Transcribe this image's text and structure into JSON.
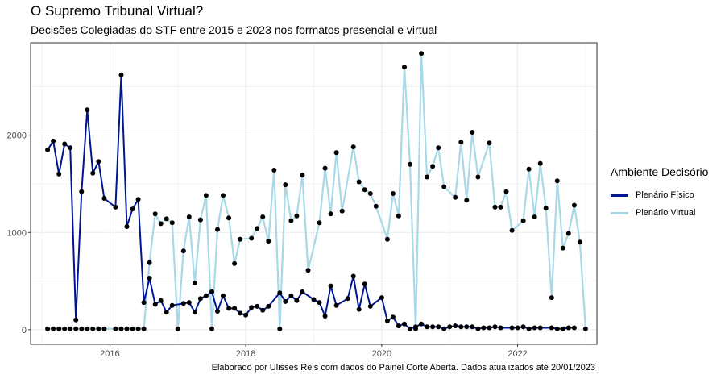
{
  "title": "O Supremo Tribunal Virtual?",
  "subtitle": "Decisões Colegiadas do STF entre 2015 e 2023 nos formatos presencial e virtual",
  "caption": "Elaborado por Ulisses Reis com dados do Painel Corte Aberta. Dados atualizados até 20/01/2023",
  "legend": {
    "title": "Ambiente Decisório",
    "items": [
      "Plenário Físico",
      "Plenário Virtual"
    ]
  },
  "colors": {
    "fisico": "#00168f",
    "virtual": "#a9d8e6",
    "grid": "#ebebeb",
    "panel_border": "#333333",
    "point": "#000000"
  },
  "chart_data": {
    "type": "line",
    "title": "O Supremo Tribunal Virtual?",
    "subtitle": "Decisões Colegiadas do STF entre 2015 e 2023 nos formatos presencial e virtual",
    "xlabel": "",
    "ylabel": "",
    "x_ticks": [
      "2016",
      "2018",
      "2020",
      "2022"
    ],
    "y_ticks": [
      0,
      1000,
      2000
    ],
    "ylim": [
      -150,
      2950
    ],
    "xlim": [
      "2014-11",
      "2023-03"
    ],
    "grid": true,
    "legend_position": "right",
    "series": [
      {
        "name": "Plenário Físico",
        "color": "#00168f",
        "points": [
          [
            "2015-02",
            1850
          ],
          [
            "2015-03",
            1940
          ],
          [
            "2015-04",
            1600
          ],
          [
            "2015-05",
            1910
          ],
          [
            "2015-06",
            1870
          ],
          [
            "2015-07",
            100
          ],
          [
            "2015-08",
            1420
          ],
          [
            "2015-09",
            2260
          ],
          [
            "2015-10",
            1610
          ],
          [
            "2015-11",
            1730
          ],
          [
            "2015-12",
            1350
          ],
          [
            "2016-02",
            1260
          ],
          [
            "2016-03",
            2620
          ],
          [
            "2016-04",
            1060
          ],
          [
            "2016-05",
            1240
          ],
          [
            "2016-06",
            1340
          ],
          [
            "2016-07",
            280
          ],
          [
            "2016-08",
            530
          ],
          [
            "2016-09",
            260
          ],
          [
            "2016-10",
            300
          ],
          [
            "2016-11",
            180
          ],
          [
            "2016-12",
            250
          ],
          [
            "2017-02",
            270
          ],
          [
            "2017-03",
            280
          ],
          [
            "2017-04",
            180
          ],
          [
            "2017-05",
            320
          ],
          [
            "2017-06",
            350
          ],
          [
            "2017-07",
            390
          ],
          [
            "2017-08",
            190
          ],
          [
            "2017-09",
            350
          ],
          [
            "2017-10",
            220
          ],
          [
            "2017-11",
            220
          ],
          [
            "2017-12",
            170
          ],
          [
            "2018-01",
            150
          ],
          [
            "2018-02",
            230
          ],
          [
            "2018-03",
            240
          ],
          [
            "2018-04",
            200
          ],
          [
            "2018-05",
            240
          ],
          [
            "2018-07",
            380
          ],
          [
            "2018-08",
            290
          ],
          [
            "2018-09",
            350
          ],
          [
            "2018-10",
            300
          ],
          [
            "2018-11",
            390
          ],
          [
            "2019-01",
            310
          ],
          [
            "2019-02",
            280
          ],
          [
            "2019-03",
            140
          ],
          [
            "2019-04",
            450
          ],
          [
            "2019-05",
            250
          ],
          [
            "2019-07",
            320
          ],
          [
            "2019-08",
            550
          ],
          [
            "2019-09",
            210
          ],
          [
            "2019-10",
            470
          ],
          [
            "2019-11",
            240
          ],
          [
            "2020-01",
            330
          ],
          [
            "2020-02",
            90
          ],
          [
            "2020-03",
            130
          ],
          [
            "2020-04",
            40
          ],
          [
            "2020-05",
            60
          ],
          [
            "2020-06",
            10
          ],
          [
            "2020-07",
            30
          ],
          [
            "2020-08",
            60
          ],
          [
            "2020-09",
            30
          ],
          [
            "2020-10",
            30
          ],
          [
            "2020-11",
            30
          ],
          [
            "2020-12",
            10
          ],
          [
            "2021-01",
            30
          ],
          [
            "2021-02",
            40
          ],
          [
            "2021-03",
            30
          ],
          [
            "2021-04",
            30
          ],
          [
            "2021-05",
            30
          ],
          [
            "2021-06",
            10
          ],
          [
            "2021-07",
            20
          ],
          [
            "2021-08",
            20
          ],
          [
            "2021-09",
            30
          ],
          [
            "2021-10",
            20
          ],
          [
            "2021-12",
            20
          ],
          [
            "2022-01",
            20
          ],
          [
            "2022-02",
            30
          ],
          [
            "2022-03",
            10
          ],
          [
            "2022-04",
            20
          ],
          [
            "2022-05",
            20
          ],
          [
            "2022-07",
            20
          ],
          [
            "2022-08",
            10
          ],
          [
            "2022-09",
            10
          ],
          [
            "2022-10",
            20
          ],
          [
            "2022-11",
            20
          ]
        ]
      },
      {
        "name": "Plenário Virtual",
        "color": "#a9d8e6",
        "points": [
          [
            "2015-02",
            10
          ],
          [
            "2015-03",
            10
          ],
          [
            "2015-04",
            10
          ],
          [
            "2015-05",
            10
          ],
          [
            "2015-06",
            10
          ],
          [
            "2015-07",
            10
          ],
          [
            "2015-08",
            10
          ],
          [
            "2015-09",
            10
          ],
          [
            "2015-10",
            10
          ],
          [
            "2015-11",
            10
          ],
          [
            "2015-12",
            10
          ],
          [
            "2016-02",
            10
          ],
          [
            "2016-03",
            10
          ],
          [
            "2016-04",
            10
          ],
          [
            "2016-05",
            10
          ],
          [
            "2016-06",
            10
          ],
          [
            "2016-07",
            10
          ],
          [
            "2016-08",
            690
          ],
          [
            "2016-09",
            1190
          ],
          [
            "2016-10",
            1090
          ],
          [
            "2016-11",
            1140
          ],
          [
            "2016-12",
            1100
          ],
          [
            "2017-01",
            10
          ],
          [
            "2017-02",
            810
          ],
          [
            "2017-03",
            1160
          ],
          [
            "2017-04",
            480
          ],
          [
            "2017-05",
            1130
          ],
          [
            "2017-06",
            1380
          ],
          [
            "2017-07",
            10
          ],
          [
            "2017-08",
            1030
          ],
          [
            "2017-09",
            1380
          ],
          [
            "2017-10",
            1150
          ],
          [
            "2017-11",
            680
          ],
          [
            "2017-12",
            930
          ],
          [
            "2018-02",
            940
          ],
          [
            "2018-03",
            1040
          ],
          [
            "2018-04",
            1160
          ],
          [
            "2018-05",
            910
          ],
          [
            "2018-06",
            1640
          ],
          [
            "2018-07",
            10
          ],
          [
            "2018-08",
            1490
          ],
          [
            "2018-09",
            1120
          ],
          [
            "2018-10",
            1170
          ],
          [
            "2018-11",
            1590
          ],
          [
            "2018-12",
            610
          ],
          [
            "2019-02",
            1100
          ],
          [
            "2019-03",
            1660
          ],
          [
            "2019-04",
            1190
          ],
          [
            "2019-05",
            1820
          ],
          [
            "2019-06",
            1220
          ],
          [
            "2019-08",
            1880
          ],
          [
            "2019-09",
            1520
          ],
          [
            "2019-10",
            1440
          ],
          [
            "2019-11",
            1400
          ],
          [
            "2019-12",
            1270
          ],
          [
            "2020-02",
            930
          ],
          [
            "2020-03",
            1400
          ],
          [
            "2020-04",
            1170
          ],
          [
            "2020-05",
            2700
          ],
          [
            "2020-06",
            1700
          ],
          [
            "2020-07",
            10
          ],
          [
            "2020-08",
            2840
          ],
          [
            "2020-09",
            1570
          ],
          [
            "2020-10",
            1680
          ],
          [
            "2020-11",
            1870
          ],
          [
            "2020-12",
            1470
          ],
          [
            "2021-02",
            1360
          ],
          [
            "2021-03",
            1930
          ],
          [
            "2021-04",
            1330
          ],
          [
            "2021-05",
            2030
          ],
          [
            "2021-06",
            1570
          ],
          [
            "2021-08",
            1920
          ],
          [
            "2021-09",
            1260
          ],
          [
            "2021-10",
            1260
          ],
          [
            "2021-11",
            1420
          ],
          [
            "2021-12",
            1020
          ],
          [
            "2022-02",
            1120
          ],
          [
            "2022-03",
            1650
          ],
          [
            "2022-04",
            1160
          ],
          [
            "2022-05",
            1710
          ],
          [
            "2022-06",
            1250
          ],
          [
            "2022-07",
            330
          ],
          [
            "2022-08",
            1530
          ],
          [
            "2022-09",
            840
          ],
          [
            "2022-10",
            990
          ],
          [
            "2022-11",
            1280
          ],
          [
            "2022-12",
            900
          ],
          [
            "2023-01",
            10
          ]
        ]
      }
    ]
  }
}
